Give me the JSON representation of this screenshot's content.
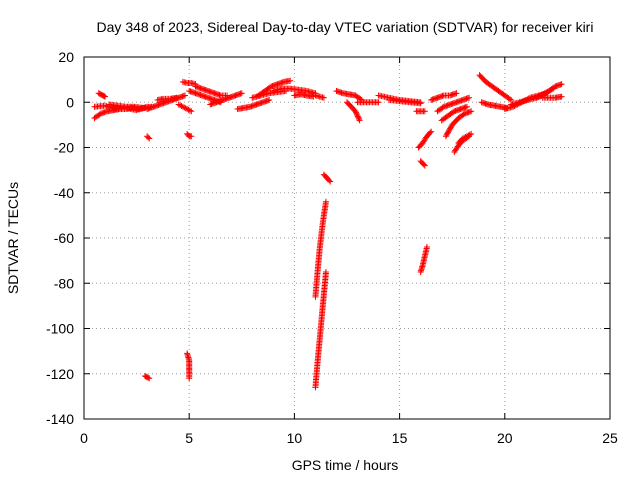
{
  "chart_data": {
    "type": "scatter",
    "title": "Day 348 of 2023, Sidereal Day-to-day VTEC variation (SDTVAR) for receiver kiri",
    "xlabel": "GPS time / hours",
    "ylabel": "SDTVAR / TECUs",
    "xlim": [
      0,
      25
    ],
    "ylim": [
      -140,
      20
    ],
    "xticks": [
      0,
      5,
      10,
      15,
      20,
      25
    ],
    "yticks": [
      -140,
      -120,
      -100,
      -80,
      -60,
      -40,
      -20,
      0,
      20
    ],
    "grid": true,
    "marker": "plus",
    "color": "#ff0000",
    "segments": [
      {
        "x": [
          0.5,
          1.0,
          1.5,
          2.0,
          2.5,
          3.0
        ],
        "y": [
          -2,
          -1.5,
          -3,
          -2.5,
          -3.5,
          -2
        ]
      },
      {
        "x": [
          0.5,
          0.8,
          1.1,
          1.4,
          1.7,
          2.0
        ],
        "y": [
          -7,
          -5,
          -4,
          -3.5,
          -3,
          -3
        ]
      },
      {
        "x": [
          0.7,
          0.8,
          0.9,
          1.0
        ],
        "y": [
          4,
          3.5,
          3,
          2.5
        ]
      },
      {
        "x": [
          1.2,
          1.6,
          2.0,
          2.4,
          2.8,
          3.2
        ],
        "y": [
          -1,
          -1.5,
          -2,
          -2,
          -2.5,
          -2
        ]
      },
      {
        "x": [
          2.0,
          2.3,
          2.6,
          2.9
        ],
        "y": [
          -3,
          -2.5,
          -3,
          -2.5
        ]
      },
      {
        "x": [
          3.0,
          3.3,
          3.6,
          3.9,
          4.2,
          4.5,
          4.8
        ],
        "y": [
          -3,
          -2,
          -1,
          0,
          1,
          2,
          3
        ]
      },
      {
        "x": [
          3.5,
          3.8,
          4.1,
          4.4
        ],
        "y": [
          1,
          1.5,
          1.5,
          2
        ]
      },
      {
        "x": [
          4.5,
          4.7,
          4.9,
          5.1
        ],
        "y": [
          -1,
          -2,
          -3,
          -4
        ]
      },
      {
        "x": [
          4.7,
          4.9,
          5.1,
          5.3
        ],
        "y": [
          9,
          8.5,
          8.5,
          8
        ]
      },
      {
        "x": [
          5.0,
          5.3,
          5.6,
          5.9,
          6.2,
          6.5
        ],
        "y": [
          5,
          4,
          3,
          2,
          1,
          0
        ]
      },
      {
        "x": [
          5.3,
          5.6,
          5.9,
          6.2,
          6.5,
          6.8
        ],
        "y": [
          7,
          6,
          5,
          4,
          3,
          3
        ]
      },
      {
        "x": [
          6.0,
          6.3,
          6.6,
          6.9,
          7.2,
          7.5
        ],
        "y": [
          -1,
          0,
          1,
          2,
          3,
          4
        ]
      },
      {
        "x": [
          7.3,
          7.6,
          7.9,
          8.2,
          8.5,
          8.8
        ],
        "y": [
          -3,
          -2.5,
          -2,
          -1,
          0,
          1
        ]
      },
      {
        "x": [
          8.3,
          8.6,
          8.9,
          9.2,
          9.5,
          9.8
        ],
        "y": [
          3,
          5,
          7,
          8,
          9,
          9.5
        ]
      },
      {
        "x": [
          8.0,
          8.4,
          8.8,
          9.2,
          9.6
        ],
        "y": [
          2,
          3,
          4,
          4.5,
          5
        ]
      },
      {
        "x": [
          9.0,
          9.4,
          9.8,
          10.2,
          10.6,
          11.0
        ],
        "y": [
          5,
          6,
          6,
          5.5,
          5,
          4
        ]
      },
      {
        "x": [
          10.0,
          10.3,
          10.6,
          10.9
        ],
        "y": [
          3,
          3.5,
          3,
          2.5
        ]
      },
      {
        "x": [
          11.0,
          11.2,
          11.4
        ],
        "y": [
          3,
          2.5,
          2
        ]
      },
      {
        "x": [
          11.4,
          11.5,
          11.6,
          11.7
        ],
        "y": [
          -32,
          -33,
          -34,
          -35
        ]
      },
      {
        "x": [
          11.0,
          11.1,
          11.2,
          11.3,
          11.4,
          11.5
        ],
        "y": [
          -86,
          -75,
          -65,
          -57,
          -50,
          -44
        ]
      },
      {
        "x": [
          11.0,
          11.1,
          11.2,
          11.3,
          11.4,
          11.5
        ],
        "y": [
          -126,
          -115,
          -105,
          -95,
          -85,
          -75
        ]
      },
      {
        "x": [
          12.0,
          12.3,
          12.6,
          12.9,
          13.2
        ],
        "y": [
          5,
          4,
          3.5,
          3,
          1
        ]
      },
      {
        "x": [
          12.5,
          12.7,
          12.9,
          13.1
        ],
        "y": [
          0,
          -2,
          -4,
          -8
        ]
      },
      {
        "x": [
          13.0,
          13.5,
          14.0
        ],
        "y": [
          0,
          0,
          0
        ]
      },
      {
        "x": [
          14.0,
          14.5,
          15.0,
          15.5,
          16.0
        ],
        "y": [
          3,
          2,
          1,
          0.5,
          0
        ]
      },
      {
        "x": [
          14.5,
          15.0,
          15.5,
          16.0
        ],
        "y": [
          1,
          0.5,
          0,
          -0.5
        ]
      },
      {
        "x": [
          15.8,
          16.0,
          16.2
        ],
        "y": [
          -4,
          -4,
          -4
        ]
      },
      {
        "x": [
          15.9,
          16.1,
          16.3,
          16.5
        ],
        "y": [
          -20,
          -18,
          -15,
          -13
        ]
      },
      {
        "x": [
          16.0,
          16.1,
          16.2,
          16.3
        ],
        "y": [
          -75,
          -72,
          -68,
          -64
        ]
      },
      {
        "x": [
          16.0,
          16.1,
          16.2
        ],
        "y": [
          -26,
          -27,
          -28
        ]
      },
      {
        "x": [
          16.5,
          16.8,
          17.1,
          17.4,
          17.7
        ],
        "y": [
          1,
          2,
          3,
          3,
          4
        ]
      },
      {
        "x": [
          16.8,
          17.1,
          17.4,
          17.7,
          18.0,
          18.3
        ],
        "y": [
          -4,
          -2,
          -1,
          0,
          1,
          2
        ]
      },
      {
        "x": [
          17.0,
          17.3,
          17.6,
          17.9,
          18.2
        ],
        "y": [
          -8,
          -6,
          -4,
          -3,
          -2
        ]
      },
      {
        "x": [
          17.2,
          17.5,
          17.8,
          18.1,
          18.4
        ],
        "y": [
          -15,
          -10,
          -7,
          -5,
          -4
        ]
      },
      {
        "x": [
          17.8,
          18.0,
          18.2,
          18.4
        ],
        "y": [
          -18,
          -16,
          -15,
          -14
        ]
      },
      {
        "x": [
          17.6,
          17.8,
          18.0,
          18.3
        ],
        "y": [
          -22,
          -19,
          -17,
          -15
        ]
      },
      {
        "x": [
          18.8,
          19.1,
          19.4,
          19.7,
          20.0,
          20.3
        ],
        "y": [
          12,
          9,
          7,
          5,
          3,
          1
        ]
      },
      {
        "x": [
          18.9,
          19.2,
          19.5,
          19.8,
          20.1
        ],
        "y": [
          0,
          -1,
          -1.5,
          -2,
          -2.5
        ]
      },
      {
        "x": [
          20.0,
          20.4,
          20.8,
          21.2,
          21.6,
          22.0
        ],
        "y": [
          -3,
          -2,
          0,
          2,
          3,
          4
        ]
      },
      {
        "x": [
          20.3,
          20.7,
          21.1,
          21.5,
          21.9,
          22.3
        ],
        "y": [
          -1,
          0,
          1,
          2,
          4,
          6
        ]
      },
      {
        "x": [
          21.5,
          21.8,
          22.1,
          22.4,
          22.7
        ],
        "y": [
          2,
          3,
          5,
          7,
          8
        ]
      },
      {
        "x": [
          21.8,
          22.1,
          22.4,
          22.7
        ],
        "y": [
          2,
          2,
          2,
          2.5
        ]
      },
      {
        "x": [
          2.9,
          3.0,
          3.1
        ],
        "y": [
          -121,
          -121.5,
          -122
        ]
      },
      {
        "x": [
          3.0,
          3.1
        ],
        "y": [
          -15,
          -16
        ]
      },
      {
        "x": [
          4.9,
          5.0,
          5.0,
          5.0,
          5.0
        ],
        "y": [
          -111,
          -114,
          -117,
          -120,
          -122
        ]
      },
      {
        "x": [
          4.9,
          5.0,
          5.1
        ],
        "y": [
          -14,
          -15,
          -15
        ]
      }
    ]
  }
}
